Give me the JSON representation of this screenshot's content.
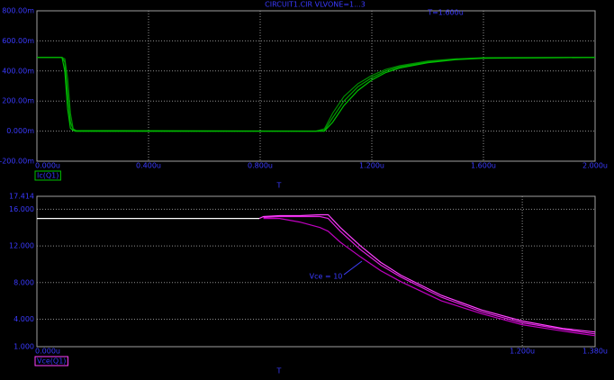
{
  "chart_data": [
    {
      "type": "line",
      "title": "CIRCUIT1.CIR VLVONE=1...3",
      "annotation": "T=1.600u",
      "x_label": "T",
      "x": [
        0,
        0.09,
        0.1,
        0.11,
        0.12,
        0.13,
        0.14,
        1.0,
        1.03,
        1.06,
        1.1,
        1.15,
        1.2,
        1.25,
        1.3,
        1.4,
        1.5,
        1.6,
        2.0
      ],
      "series": [
        {
          "name": "Ic(Q1)",
          "color": "#00c000",
          "values": [
            490,
            490,
            400,
            150,
            20,
            5,
            0,
            0,
            0,
            60,
            170,
            270,
            340,
            390,
            420,
            455,
            475,
            485,
            490
          ]
        },
        {
          "color": "#00a000",
          "values": [
            490,
            490,
            460,
            250,
            60,
            10,
            0,
            0,
            5,
            90,
            200,
            295,
            355,
            400,
            428,
            460,
            478,
            487,
            490
          ]
        },
        {
          "color": "#008800",
          "values": [
            490,
            490,
            480,
            350,
            120,
            15,
            5,
            0,
            15,
            120,
            230,
            315,
            370,
            410,
            435,
            465,
            480,
            488,
            490
          ]
        }
      ],
      "xlim": [
        0,
        2
      ],
      "ylim": [
        -200,
        800
      ],
      "xticks": [
        {
          "value": 0,
          "label": "0.000u"
        },
        {
          "value": 0.4,
          "label": "0.400u"
        },
        {
          "value": 0.8,
          "label": "0.800u"
        },
        {
          "value": 1.2,
          "label": "1.200u"
        },
        {
          "value": 1.6,
          "label": "1.600u"
        },
        {
          "value": 2,
          "label": "2.000u"
        }
      ],
      "yticks": [
        {
          "value": -200,
          "label": "-200.00m"
        },
        {
          "value": 0,
          "label": "0.000m"
        },
        {
          "value": 200,
          "label": "200.00m"
        },
        {
          "value": 400,
          "label": "400.00m"
        },
        {
          "value": 600,
          "label": "600.00m"
        },
        {
          "value": 800,
          "label": "800.00m"
        }
      ],
      "grid": true
    },
    {
      "type": "line",
      "annotation": "Vce = 10",
      "x_label": "T",
      "x": [
        0,
        0.3,
        0.55,
        0.56,
        0.6,
        0.65,
        0.7,
        0.72,
        0.75,
        0.8,
        0.85,
        0.9,
        1.0,
        1.1,
        1.2,
        1.3,
        1.38
      ],
      "series": [
        {
          "name": "Vce(Q1)",
          "color": "#ff40ff",
          "values": [
            null,
            null,
            15.0,
            15.2,
            15.3,
            15.3,
            15.4,
            15.4,
            14.0,
            12.0,
            10.2,
            8.8,
            6.6,
            5.0,
            3.8,
            3.0,
            2.6
          ]
        },
        {
          "color": "#e020e0",
          "values": [
            null,
            null,
            null,
            15.1,
            15.2,
            15.2,
            15.2,
            15.0,
            13.6,
            11.6,
            9.9,
            8.6,
            6.4,
            4.8,
            3.6,
            2.9,
            2.4
          ]
        },
        {
          "color": "#c000c0",
          "values": [
            null,
            null,
            null,
            15.0,
            15.0,
            14.6,
            14.0,
            13.6,
            12.4,
            10.8,
            9.3,
            8.1,
            6.0,
            4.6,
            3.4,
            2.7,
            2.2
          ]
        },
        {
          "color": "#ffffff",
          "values": [
            15.0,
            15.0,
            15.0,
            null,
            null,
            null,
            null,
            null,
            null,
            null,
            null,
            null,
            null,
            null,
            null,
            null,
            null
          ]
        }
      ],
      "xlim": [
        0,
        1.38
      ],
      "ylim": [
        1,
        17.414
      ],
      "xticks": [
        {
          "value": 0,
          "label": "0.000u"
        },
        {
          "value": 1.2,
          "label": "1.200u"
        },
        {
          "value": 1.38,
          "label": "1.380u"
        }
      ],
      "yticks": [
        {
          "value": 1,
          "label": "1.000"
        },
        {
          "value": 4,
          "label": "4.000"
        },
        {
          "value": 8,
          "label": "8.000"
        },
        {
          "value": 12,
          "label": "12.000"
        },
        {
          "value": 16,
          "label": "16.000"
        },
        17.414
      ],
      "grid": true
    }
  ]
}
